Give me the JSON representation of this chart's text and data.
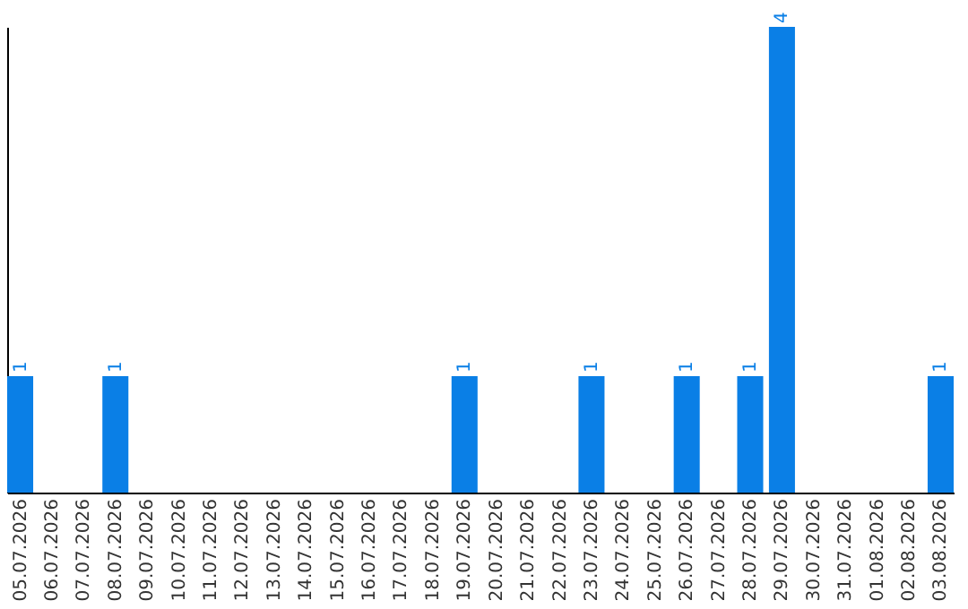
{
  "chart_data": {
    "type": "bar",
    "categories": [
      "05.07.2026",
      "06.07.2026",
      "07.07.2026",
      "08.07.2026",
      "09.07.2026",
      "10.07.2026",
      "11.07.2026",
      "12.07.2026",
      "13.07.2026",
      "14.07.2026",
      "15.07.2026",
      "16.07.2026",
      "17.07.2026",
      "18.07.2026",
      "19.07.2026",
      "20.07.2026",
      "21.07.2026",
      "22.07.2026",
      "23.07.2026",
      "24.07.2026",
      "25.07.2026",
      "26.07.2026",
      "27.07.2026",
      "28.07.2026",
      "29.07.2026",
      "30.07.2026",
      "31.07.2026",
      "01.08.2026",
      "02.08.2026",
      "03.08.2026"
    ],
    "values": [
      1,
      0,
      0,
      1,
      0,
      0,
      0,
      0,
      0,
      0,
      0,
      0,
      0,
      0,
      1,
      0,
      0,
      0,
      1,
      0,
      0,
      1,
      0,
      1,
      4,
      0,
      0,
      0,
      0,
      1
    ],
    "value_labels": [
      "1",
      null,
      null,
      "1",
      null,
      null,
      null,
      null,
      null,
      null,
      null,
      null,
      null,
      null,
      "1",
      null,
      null,
      null,
      "1",
      null,
      null,
      "1",
      null,
      "1",
      "4",
      null,
      null,
      null,
      null,
      "1"
    ],
    "color": "#0a7fe6",
    "grid": false
  }
}
